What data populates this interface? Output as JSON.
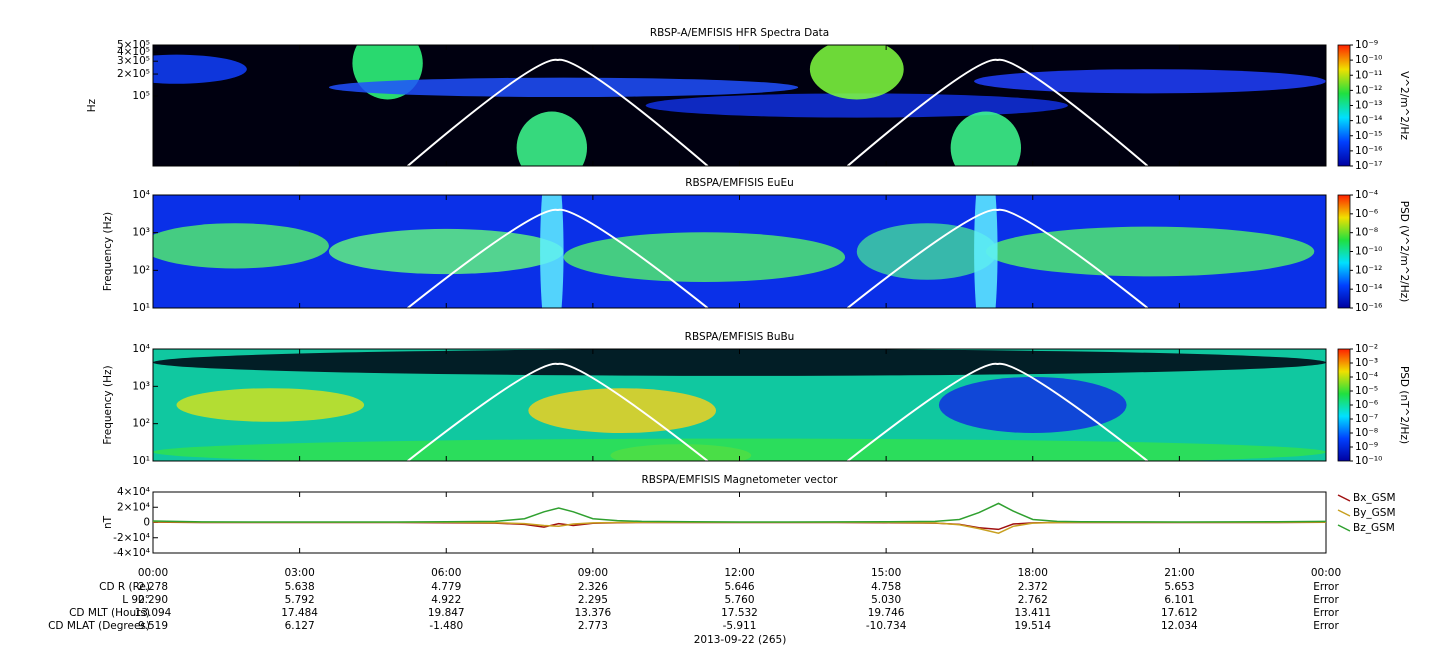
{
  "chart_data": [
    {
      "type": "spectrogram",
      "title": "RBSP-A/EMFISIS  HFR Spectra Data",
      "ylabel": "Hz",
      "log_y": true,
      "ylim": [
        11000,
        500000
      ],
      "yticks": [
        {
          "value": 500000,
          "label": "5×10⁵"
        },
        {
          "value": 400000,
          "label": "4×10⁵"
        },
        {
          "value": 300000,
          "label": "3×10⁵"
        },
        {
          "value": 200000,
          "label": "2×10⁵"
        },
        {
          "value": 100000,
          "label": "10⁵"
        }
      ],
      "colorbar_label": "V^2/m^2/Hz",
      "clim": [
        1e-17,
        1e-09
      ],
      "cticks": [
        {
          "value": 1e-09,
          "label": "10⁻⁹"
        },
        {
          "value": 1e-10,
          "label": "10⁻¹⁰"
        },
        {
          "value": 1e-11,
          "label": "10⁻¹¹"
        },
        {
          "value": 1e-12,
          "label": "10⁻¹²"
        },
        {
          "value": 1e-13,
          "label": "10⁻¹³"
        },
        {
          "value": 1e-14,
          "label": "10⁻¹⁴"
        },
        {
          "value": 1e-15,
          "label": "10⁻¹⁵"
        },
        {
          "value": 1e-16,
          "label": "10⁻¹⁶"
        },
        {
          "value": 1e-17,
          "label": "10⁻¹⁷"
        }
      ]
    },
    {
      "type": "spectrogram",
      "title": "RBSPA/EMFISIS  EuEu",
      "ylabel": "Frequency (Hz)",
      "log_y": true,
      "ylim": [
        10,
        10000
      ],
      "yticks": [
        {
          "value": 10,
          "label": "10¹"
        },
        {
          "value": 100,
          "label": "10²"
        },
        {
          "value": 1000,
          "label": "10³"
        },
        {
          "value": 10000,
          "label": "10⁴"
        }
      ],
      "colorbar_label": "PSD (V^2/m^2/Hz)",
      "clim": [
        1e-16,
        0.0001
      ],
      "cticks": [
        {
          "value": 0.0001,
          "label": "10⁻⁴"
        },
        {
          "value": 1e-06,
          "label": "10⁻⁶"
        },
        {
          "value": 1e-08,
          "label": "10⁻⁸"
        },
        {
          "value": 1e-10,
          "label": "10⁻¹⁰"
        },
        {
          "value": 1e-12,
          "label": "10⁻¹²"
        },
        {
          "value": 1e-14,
          "label": "10⁻¹⁴"
        },
        {
          "value": 1e-16,
          "label": "10⁻¹⁶"
        }
      ]
    },
    {
      "type": "spectrogram",
      "title": "RBSPA/EMFISIS  BuBu",
      "ylabel": "Frequency (Hz)",
      "log_y": true,
      "ylim": [
        10,
        10000
      ],
      "yticks": [
        {
          "value": 10,
          "label": "10¹"
        },
        {
          "value": 100,
          "label": "10²"
        },
        {
          "value": 1000,
          "label": "10³"
        },
        {
          "value": 10000,
          "label": "10⁴"
        }
      ],
      "colorbar_label": "PSD (nT^2/Hz)",
      "clim": [
        1e-10,
        0.01
      ],
      "cticks": [
        {
          "value": 0.01,
          "label": "10⁻²"
        },
        {
          "value": 0.001,
          "label": "10⁻³"
        },
        {
          "value": 0.0001,
          "label": "10⁻⁴"
        },
        {
          "value": 1e-05,
          "label": "10⁻⁵"
        },
        {
          "value": 1e-06,
          "label": "10⁻⁶"
        },
        {
          "value": 1e-07,
          "label": "10⁻⁷"
        },
        {
          "value": 1e-08,
          "label": "10⁻⁸"
        },
        {
          "value": 1e-09,
          "label": "10⁻⁹"
        },
        {
          "value": 1e-10,
          "label": "10⁻¹⁰"
        }
      ]
    },
    {
      "type": "line",
      "title": "RBSPA/EMFISIS  Magnetometer vector",
      "ylabel": "nT",
      "legend": "right",
      "ylim": [
        -40000,
        40000
      ],
      "yticks": [
        {
          "value": 40000,
          "label": "4×10⁴"
        },
        {
          "value": 20000,
          "label": "2×10⁴"
        },
        0,
        {
          "value": -20000,
          "label": "-2×10⁴"
        },
        {
          "value": -40000,
          "label": "-4×10⁴"
        }
      ],
      "xlim": [
        0,
        24
      ],
      "xticks": [
        {
          "value": 0,
          "label": "00:00"
        },
        {
          "value": 3,
          "label": "03:00"
        },
        {
          "value": 6,
          "label": "06:00"
        },
        {
          "value": 9,
          "label": "09:00"
        },
        {
          "value": 12,
          "label": "12:00"
        },
        {
          "value": 15,
          "label": "15:00"
        },
        {
          "value": 18,
          "label": "18:00"
        },
        {
          "value": 21,
          "label": "21:00"
        },
        {
          "value": 24,
          "label": "00:00"
        }
      ],
      "x": [
        0,
        1,
        2,
        3,
        4,
        5,
        6,
        7,
        7.6,
        8.0,
        8.3,
        8.6,
        9.0,
        9.5,
        10,
        11,
        12,
        13,
        14,
        15,
        16,
        16.5,
        16.9,
        17.3,
        17.6,
        18,
        18.5,
        19,
        20,
        21,
        22,
        23,
        24
      ],
      "series": [
        {
          "name": "Bx_GSM",
          "color": "#a01010",
          "values": [
            500,
            0,
            0,
            0,
            0,
            0,
            -300,
            -800,
            -2500,
            -6000,
            -1500,
            -4000,
            -1000,
            -300,
            0,
            0,
            0,
            0,
            0,
            -300,
            -800,
            -2500,
            -7000,
            -9000,
            -2000,
            -500,
            0,
            0,
            0,
            0,
            0,
            0,
            300
          ]
        },
        {
          "name": "By_GSM",
          "color": "#c8a020",
          "values": [
            1000,
            300,
            200,
            200,
            200,
            300,
            200,
            -300,
            -1500,
            -4000,
            -5000,
            -2000,
            -500,
            0,
            200,
            300,
            200,
            200,
            200,
            100,
            -500,
            -3000,
            -8000,
            -14000,
            -5000,
            -800,
            0,
            200,
            200,
            200,
            200,
            300,
            500
          ]
        },
        {
          "name": "Bz_GSM",
          "color": "#30a030",
          "values": [
            2000,
            800,
            600,
            600,
            600,
            700,
            900,
            1500,
            5000,
            14000,
            19000,
            14000,
            5000,
            2500,
            1500,
            900,
            700,
            700,
            800,
            900,
            1500,
            4000,
            13000,
            25000,
            15000,
            4000,
            1500,
            1000,
            800,
            700,
            800,
            1000,
            1500
          ]
        }
      ]
    }
  ],
  "ephemeris": {
    "rows": [
      {
        "label": "CD R (Re)",
        "values": [
          "2.278",
          "5.638",
          "4.779",
          "2.326",
          "5.646",
          "4.758",
          "2.372",
          "5.653",
          "Error"
        ]
      },
      {
        "label": "L 90°",
        "values": [
          "2.290",
          "5.792",
          "4.922",
          "2.295",
          "5.760",
          "5.030",
          "2.762",
          "6.101",
          "Error"
        ]
      },
      {
        "label": "CD MLT (Hours)",
        "values": [
          "13.094",
          "17.484",
          "19.847",
          "13.376",
          "17.532",
          "19.746",
          "13.411",
          "17.612",
          "Error"
        ]
      },
      {
        "label": "CD MLAT (Degrees)",
        "values": [
          "9.519",
          "6.127",
          "-1.480",
          "2.773",
          "-5.911",
          "-10.734",
          "19.514",
          "12.034",
          "Error"
        ]
      }
    ]
  },
  "date_label": "2013-09-22 (265)"
}
